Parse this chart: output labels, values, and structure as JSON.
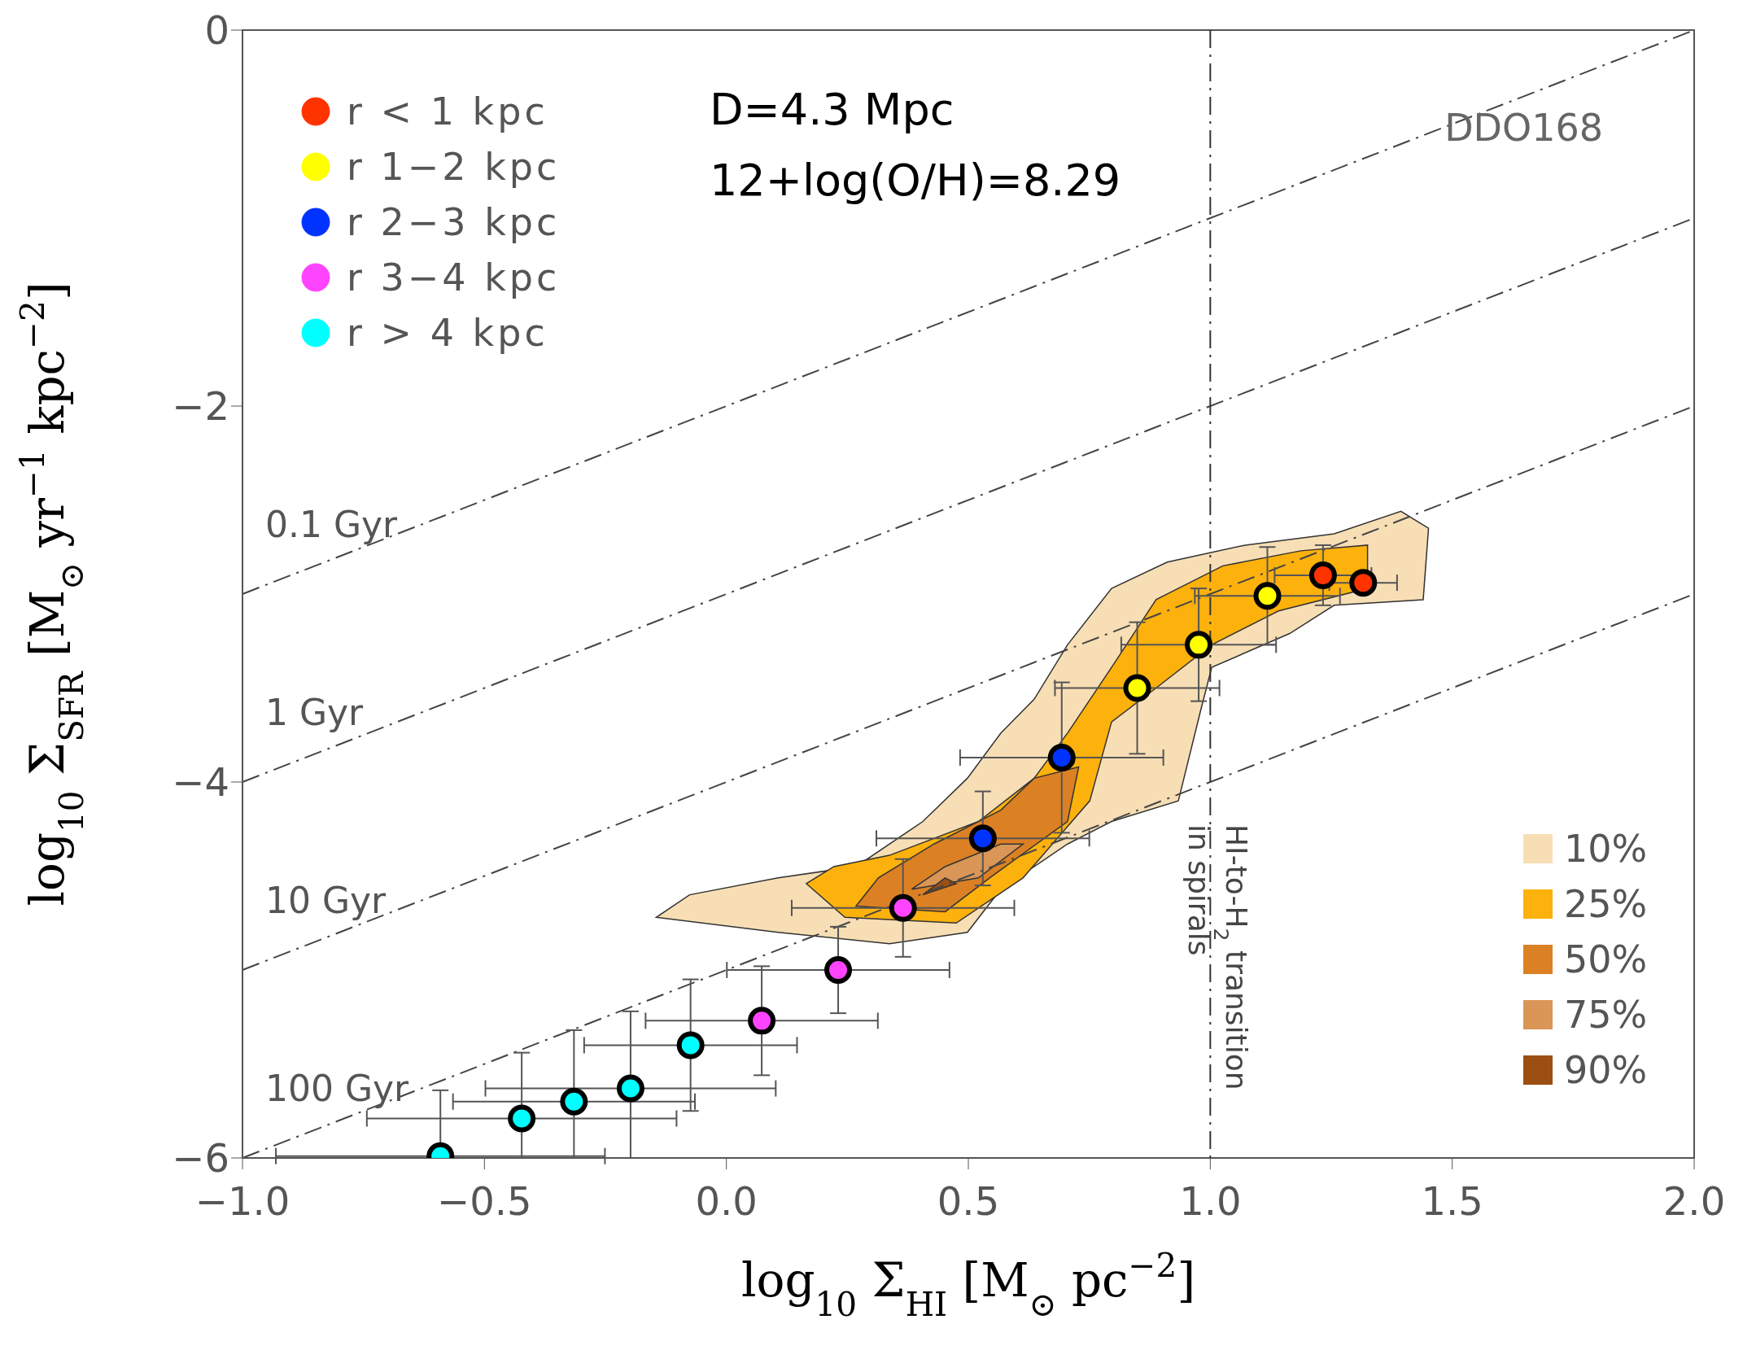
{
  "chart_data": {
    "type": "scatter",
    "xlabel": "log$_{10}$ Σ$_{HI}$ [M$_{⊙}$ pc$^{−2}$]",
    "ylabel": "log$_{10}$ Σ$_{SFR}$ [M$_{⊙}$ yr$^{−1}$ kpc$^{−2}$]",
    "xlim": [
      -1,
      2
    ],
    "ylim": [
      -6,
      0
    ],
    "xticks": [
      {
        "value": -1,
        "label": "−1.0"
      },
      {
        "value": -0.5,
        "label": "−0.5"
      },
      {
        "value": 0,
        "label": "0.0"
      },
      0.5,
      {
        "value": 1,
        "label": "1.0"
      },
      1.5,
      {
        "value": 2,
        "label": "2.0"
      }
    ],
    "yticks": [
      {
        "value": -6,
        "label": "−6"
      },
      {
        "value": -4,
        "label": "−4"
      },
      {
        "value": -2,
        "label": "−2"
      },
      0
    ],
    "legend": "top left",
    "marker": "circle",
    "annotations": [
      "D=4.3 Mpc",
      "12+log(O/H)=8.29",
      "DDO168"
    ],
    "ref_lines": [
      {
        "axis": "x",
        "value": 1,
        "label": "HI-to-H$_{2}$ transition in spirals",
        "line_style": "dashed"
      }
    ],
    "series": [
      {
        "name": "10%",
        "type": "area",
        "marker": "none",
        "color": "#f7deb5",
        "x": [
          -0.145,
          0.107,
          0.337,
          0.498,
          0.567,
          0.705,
          0.796,
          0.934,
          0.98,
          1.003,
          1.164,
          1.256,
          1.44,
          1.451,
          1.394,
          1.256,
          1.072,
          0.911,
          0.796,
          0.705,
          0.636,
          0.567,
          0.498,
          0.406,
          0.268,
          0.107,
          -0.076
        ],
        "values": [
          -4.72,
          -4.8,
          -4.86,
          -4.8,
          -4.57,
          -4.33,
          -4.21,
          -4.1,
          -3.62,
          -3.39,
          -3.21,
          -3.06,
          -3.03,
          -2.65,
          -2.56,
          -2.68,
          -2.74,
          -2.83,
          -2.97,
          -3.27,
          -3.56,
          -3.74,
          -3.98,
          -4.21,
          -4.45,
          -4.51,
          -4.6
        ]
      },
      {
        "name": "25%",
        "type": "area",
        "marker": "none",
        "color": "#fdb10c",
        "x": [
          0.165,
          0.245,
          0.475,
          0.613,
          0.751,
          0.796,
          0.888,
          1.003,
          1.141,
          1.325,
          1.325,
          1.187,
          1.026,
          0.888,
          0.796,
          0.705,
          0.636,
          0.521,
          0.337,
          0.222
        ],
        "values": [
          -4.54,
          -4.72,
          -4.75,
          -4.51,
          -4.1,
          -3.68,
          -3.5,
          -3.27,
          -3.09,
          -2.97,
          -2.74,
          -2.77,
          -2.85,
          -3.03,
          -3.39,
          -3.74,
          -3.98,
          -4.21,
          -4.39,
          -4.45
        ]
      },
      {
        "name": "50%",
        "type": "area",
        "marker": "none",
        "color": "#dc8024",
        "x": [
          0.268,
          0.452,
          0.544,
          0.705,
          0.728,
          0.636,
          0.567,
          0.429,
          0.314
        ],
        "values": [
          -4.66,
          -4.69,
          -4.51,
          -4.21,
          -3.92,
          -3.98,
          -4.15,
          -4.33,
          -4.51
        ]
      },
      {
        "name": "75%",
        "type": "area",
        "marker": "none",
        "color": "#d99656",
        "x": [
          0.383,
          0.521,
          0.613,
          0.567,
          0.452
        ],
        "values": [
          -4.57,
          -4.51,
          -4.33,
          -4.33,
          -4.45
        ]
      },
      {
        "name": "90%",
        "type": "area",
        "marker": "none",
        "color": "#9b4f12",
        "x": [
          0.406,
          0.475,
          0.452
        ],
        "values": [
          -4.6,
          -4.54,
          -4.51
        ]
      },
      {
        "name": "0.1 Gyr",
        "type": "line",
        "marker": "none",
        "color": "#444444",
        "line_style": "dashed",
        "x": [
          -1,
          2
        ],
        "values": [
          -3,
          0
        ]
      },
      {
        "name": "1 Gyr",
        "type": "line",
        "marker": "none",
        "color": "#444444",
        "line_style": "dashed",
        "x": [
          -1,
          2
        ],
        "values": [
          -4,
          -1
        ]
      },
      {
        "name": "10 Gyr",
        "type": "line",
        "marker": "none",
        "color": "#444444",
        "line_style": "dashed",
        "x": [
          -1,
          2
        ],
        "values": [
          -5,
          -2
        ]
      },
      {
        "name": "100 Gyr",
        "type": "line",
        "marker": "none",
        "color": "#444444",
        "line_style": "dashed",
        "x": [
          -1,
          2
        ],
        "values": [
          -6,
          -3
        ]
      },
      {
        "name": "r < 1 kpc",
        "color": "#ff3300",
        "x": [
          1.233,
          1.316
        ],
        "values": [
          -2.9,
          -2.94
        ],
        "errors": [
          0.16,
          0.05
        ],
        "xerrors": [
          0.1,
          0.07
        ]
      },
      {
        "name": "r 1−2 kpc",
        "color": "#ffff00",
        "x": [
          1.118,
          0.976,
          0.849
        ],
        "values": [
          -3.01,
          -3.27,
          -3.5
        ],
        "errors": [
          0.26,
          0.3,
          0.35
        ],
        "xerrors": [
          0.15,
          0.16,
          0.17
        ]
      },
      {
        "name": "r 2−3 kpc",
        "color": "#0033ff",
        "x": [
          0.693,
          0.53
        ],
        "values": [
          -3.87,
          -4.3
        ],
        "errors": [
          0.4,
          0.25
        ],
        "xerrors": [
          0.21,
          0.22
        ]
      },
      {
        "name": "r 3−4 kpc",
        "color": "#ff44ff",
        "x": [
          0.365,
          0.231,
          0.073
        ],
        "values": [
          -4.67,
          -5.0,
          -5.27
        ],
        "errors": [
          0.26,
          0.23,
          0.29
        ],
        "xerrors": [
          0.23,
          0.23,
          0.24
        ]
      },
      {
        "name": "r > 4 kpc",
        "color": "#00ffff",
        "x": [
          -0.074,
          -0.198,
          -0.315,
          -0.423,
          -0.591
        ],
        "values": [
          -5.4,
          -5.63,
          -5.7,
          -5.79,
          -5.99
        ],
        "errors": [
          0.35,
          [
            -6,
            -5.22
          ],
          [
            -6,
            -5.32
          ],
          [
            -6,
            -5.44
          ],
          [
            -6,
            -5.64
          ]
        ],
        "xerrors": [
          0.22,
          0.3,
          0.25,
          0.32,
          0.34
        ]
      }
    ]
  }
}
